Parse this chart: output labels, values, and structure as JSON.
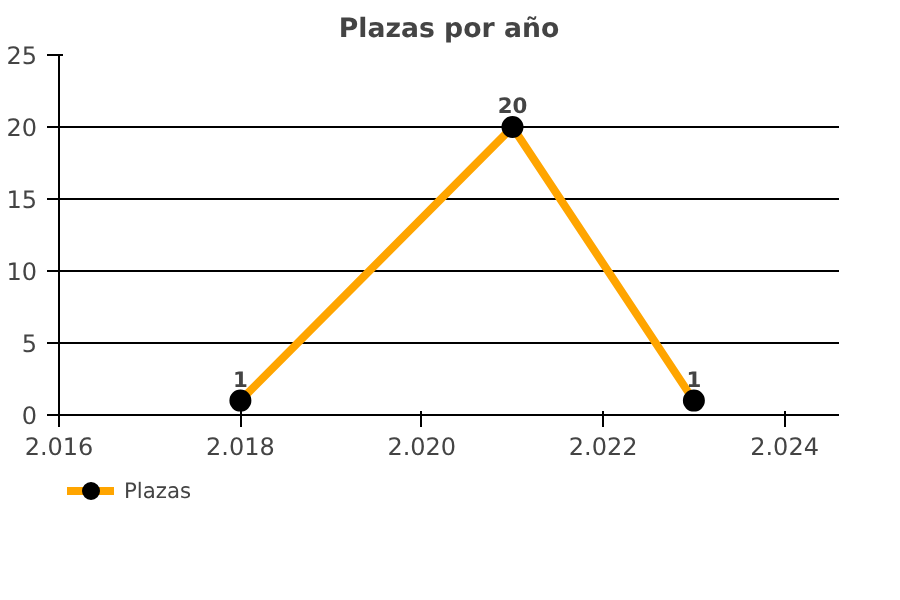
{
  "chart_data": {
    "type": "line",
    "title": "Plazas por año",
    "x": [
      2018,
      2021,
      2023
    ],
    "series": [
      {
        "name": "Plazas",
        "color": "#ffa500",
        "values": [
          1,
          20,
          1
        ]
      }
    ],
    "xlim": [
      2016,
      2024.6
    ],
    "xticks": [
      {
        "value": 2016,
        "label": "2.016"
      },
      {
        "value": 2018,
        "label": "2.018"
      },
      {
        "value": 2020,
        "label": "2.020"
      },
      {
        "value": 2022,
        "label": "2.022"
      },
      {
        "value": 2024,
        "label": "2.024"
      }
    ],
    "ylim": [
      0,
      25
    ],
    "yticks": [
      0,
      5,
      10,
      15,
      20,
      25
    ],
    "grid": "y",
    "legend": "bottom left",
    "marker": "circle",
    "line_style": "solid",
    "data_labels": true
  }
}
